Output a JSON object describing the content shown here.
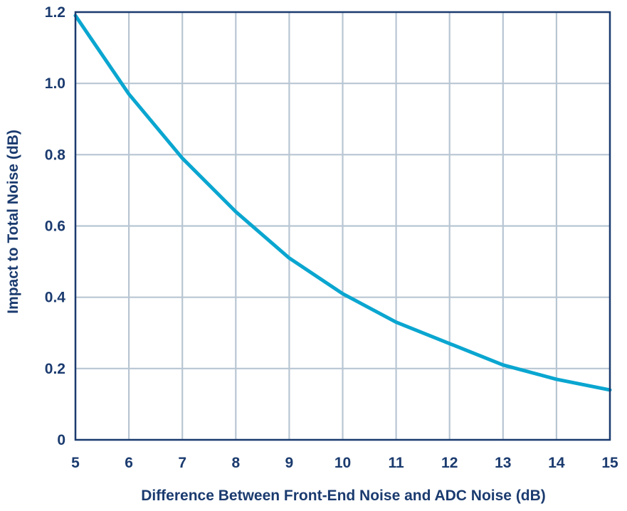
{
  "chart_data": {
    "type": "line",
    "title": "",
    "xlabel": "Difference Between Front-End Noise and ADC Noise (dB)",
    "ylabel": "Impact to Total Noise (dB)",
    "xlim": [
      5,
      15
    ],
    "ylim": [
      0,
      1.2
    ],
    "x_ticks": [
      5,
      6,
      7,
      8,
      9,
      10,
      11,
      12,
      13,
      14,
      15
    ],
    "x_tick_labels": [
      "5",
      "6",
      "7",
      "8",
      "9",
      "10",
      "11",
      "12",
      "13",
      "14",
      "15"
    ],
    "y_ticks": [
      0,
      0.2,
      0.4,
      0.6,
      0.8,
      1.0,
      1.2
    ],
    "y_tick_labels": [
      "0",
      "0.2",
      "0.4",
      "0.6",
      "0.8",
      "1.0",
      "1.2"
    ],
    "grid": true,
    "series": [
      {
        "x": [
          5,
          6,
          7,
          8,
          9,
          10,
          11,
          12,
          13,
          14,
          15
        ],
        "y": [
          1.19,
          0.97,
          0.79,
          0.64,
          0.51,
          0.41,
          0.33,
          0.27,
          0.21,
          0.17,
          0.14
        ]
      }
    ],
    "colors": {
      "line": "#0aa6d0",
      "grid": "#b8c6d3",
      "frame": "#1b3b6f",
      "text": "#1b3b6f"
    }
  }
}
